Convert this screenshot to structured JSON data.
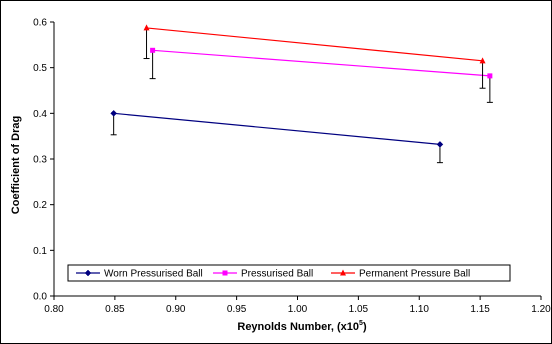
{
  "chart_data": {
    "type": "line",
    "title": "",
    "xlabel": "Reynolds Number, (x10",
    "xlabel_sup": "5",
    "xlabel_end": ")",
    "ylabel": "Coefficient of Drag",
    "xlim": [
      0.8,
      1.2
    ],
    "ylim": [
      0,
      0.6
    ],
    "xticks": [
      "0.80",
      "0.85",
      "0.90",
      "0.95",
      "1.00",
      "1.05",
      "1.10",
      "1.15",
      "1.20"
    ],
    "yticks": [
      "0.0",
      "0.1",
      "0.2",
      "0.3",
      "0.4",
      "0.5",
      "0.6"
    ],
    "grid": false,
    "legend_position": "bottom",
    "error_bars": "lower",
    "series": [
      {
        "name": "Worn Pressurised Ball",
        "color": "#000080",
        "marker": "diamond",
        "x": [
          0.849,
          1.117
        ],
        "y": [
          0.4,
          0.332
        ],
        "error_lower": [
          0.047,
          0.04
        ]
      },
      {
        "name": "Pressurised Ball",
        "color": "#FF00FF",
        "marker": "square",
        "x": [
          0.881,
          1.158
        ],
        "y": [
          0.538,
          0.482
        ],
        "error_lower": [
          0.062,
          0.058
        ]
      },
      {
        "name": "Permanent Pressure Ball",
        "color": "#FF0000",
        "marker": "triangle",
        "x": [
          0.876,
          1.152
        ],
        "y": [
          0.587,
          0.515
        ],
        "error_lower": [
          0.067,
          0.06
        ]
      }
    ]
  }
}
